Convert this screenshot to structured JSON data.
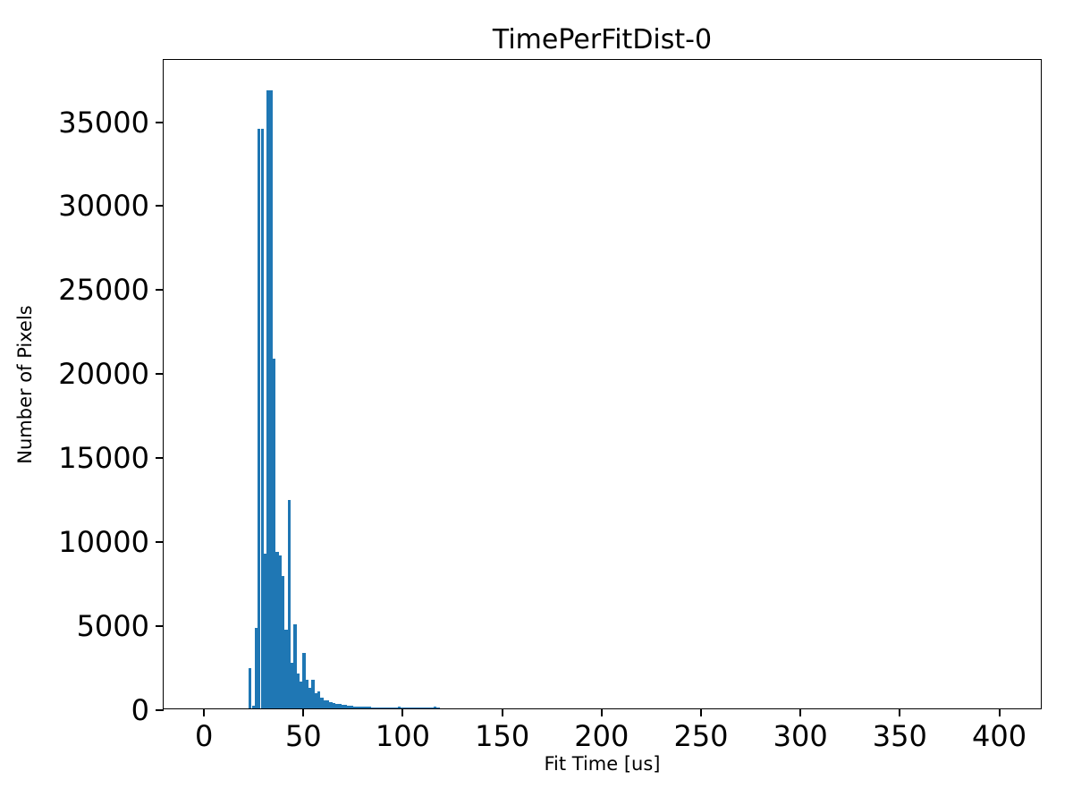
{
  "figure": {
    "title": "TimePerFitDist-0",
    "xlabel": "Fit Time [us]",
    "ylabel": "Number of Pixels"
  },
  "chart_data": {
    "type": "bar",
    "subtype": "histogram",
    "title": "TimePerFitDist-0",
    "xlabel": "Fit Time [us]",
    "ylabel": "Number of Pixels",
    "bar_color": "#1f77b4",
    "axis_color": "#000000",
    "background_color": "#ffffff",
    "grid": false,
    "legend": null,
    "xlim": [
      -20.3,
      421.8
    ],
    "ylim": [
      0,
      38700
    ],
    "xticks": [
      0,
      50,
      100,
      150,
      200,
      250,
      300,
      350,
      400
    ],
    "yticks": [
      0,
      5000,
      10000,
      15000,
      20000,
      25000,
      30000,
      35000
    ],
    "bin_width_us": 1.5,
    "bin_edges": [
      22.5,
      24,
      25.5,
      27,
      28.5,
      30,
      31.5,
      33,
      34.5,
      36,
      37.5,
      39,
      40.5,
      42,
      43.5,
      45,
      46.5,
      48,
      49.5,
      51,
      52.5,
      54,
      55.5,
      57,
      58.5,
      60,
      61.5,
      63,
      64.5,
      66,
      67.5,
      69,
      70.5,
      72,
      73.5,
      75,
      76.5,
      78,
      79.5,
      81,
      82.5,
      84,
      85.5,
      87,
      88.5,
      90,
      91.5,
      93,
      94.5,
      96,
      97.5,
      99,
      100.5,
      102,
      103.5,
      105,
      106.5,
      108,
      109.5,
      111,
      112.5,
      114,
      115.5,
      117,
      118.5
    ],
    "counts": [
      2400,
      150,
      4800,
      34500,
      34500,
      9200,
      36800,
      36800,
      20800,
      9300,
      9100,
      7900,
      4700,
      12400,
      2700,
      5000,
      2100,
      1600,
      3300,
      1700,
      1200,
      1700,
      900,
      1000,
      650,
      500,
      480,
      400,
      300,
      280,
      250,
      220,
      200,
      160,
      140,
      130,
      120,
      110,
      100,
      90,
      85,
      80,
      75,
      70,
      65,
      60,
      55,
      55,
      50,
      50,
      90,
      80,
      70,
      50,
      40,
      30,
      20,
      15,
      10,
      10,
      10,
      20,
      120,
      20
    ],
    "peak_value": 36800,
    "peak_bin_start_us": 31.5
  }
}
